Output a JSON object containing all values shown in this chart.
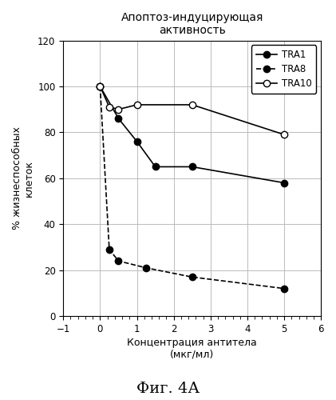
{
  "title": "Апоптоз-индуцирующая\nактивность",
  "xlabel": "Концентрация антитела\n(мкг/мл)",
  "ylabel": "% жизнеспособных\nклеток",
  "caption": "Фиг. 4А",
  "xlim": [
    -1,
    6
  ],
  "ylim": [
    0,
    120
  ],
  "xticks": [
    -1,
    0,
    1,
    2,
    3,
    4,
    5,
    6
  ],
  "yticks": [
    0,
    20,
    40,
    60,
    80,
    100,
    120
  ],
  "TRA1": {
    "x": [
      0,
      0.5,
      1,
      1.5,
      2.5,
      5
    ],
    "y": [
      100,
      86,
      76,
      65,
      65,
      58
    ],
    "color": "black",
    "linestyle": "-",
    "marker": "o",
    "markerfacecolor": "black",
    "label": "TRA1"
  },
  "TRA8": {
    "x": [
      0,
      0.25,
      0.5,
      1.25,
      2.5,
      5
    ],
    "y": [
      100,
      29,
      24,
      21,
      17,
      12
    ],
    "color": "black",
    "linestyle": "--",
    "marker": "o",
    "markerfacecolor": "black",
    "label": "TRA8"
  },
  "TRA10": {
    "x": [
      0,
      0.25,
      0.5,
      1,
      2.5,
      5
    ],
    "y": [
      100,
      91,
      90,
      92,
      92,
      79
    ],
    "color": "black",
    "linestyle": "-",
    "marker": "o",
    "markerfacecolor": "white",
    "label": "TRA10"
  },
  "background_color": "white",
  "grid_color": "#bbbbbb",
  "figsize": [
    4.21,
    5.0
  ],
  "dpi": 100
}
